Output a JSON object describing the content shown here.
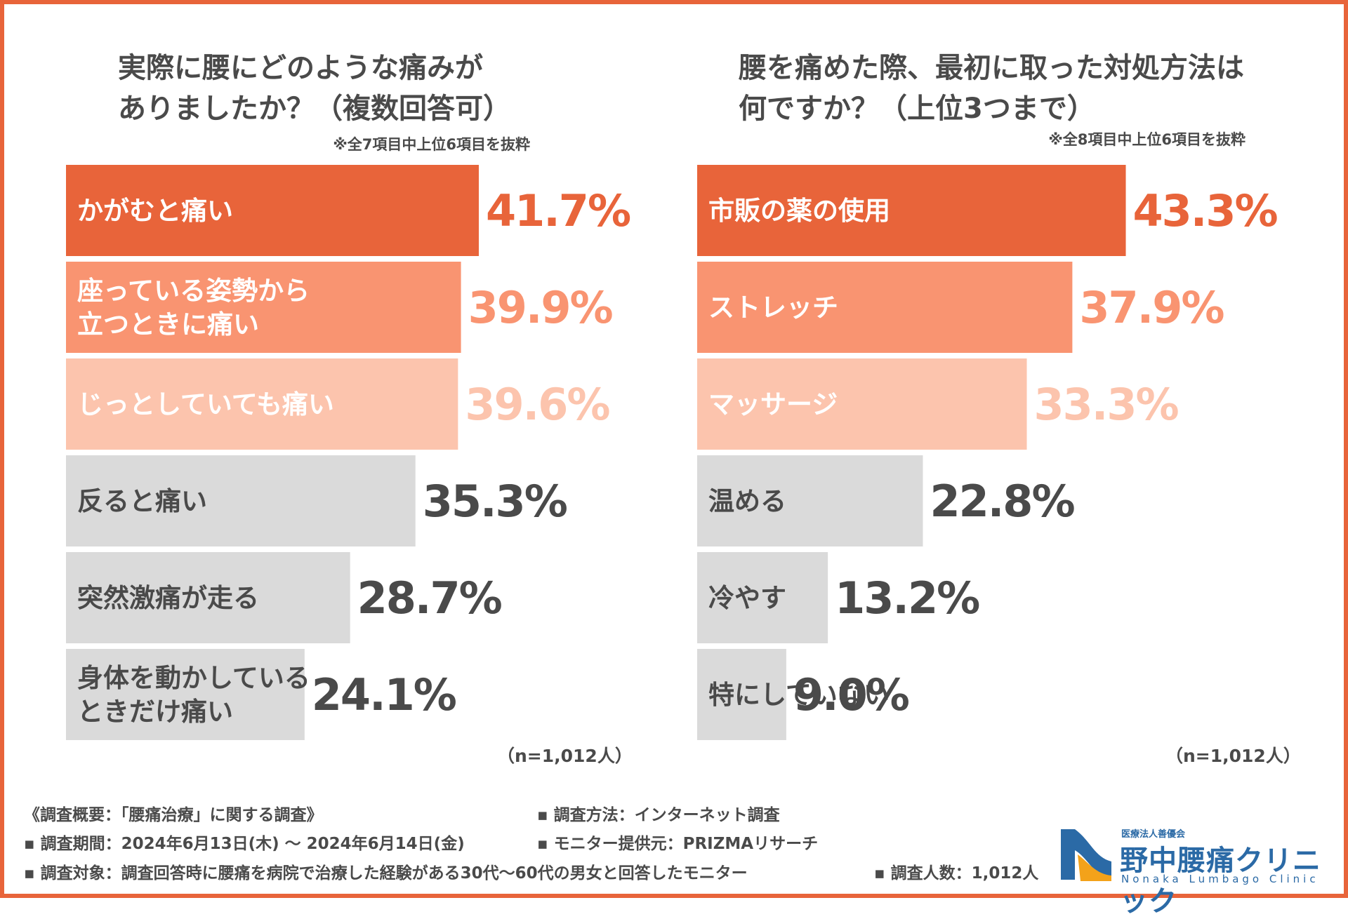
{
  "chart_data": [
    {
      "type": "bar",
      "orientation": "horizontal",
      "title": "実際に腰にどのような痛みがありましたか？（複数回答可）",
      "title_lines": [
        "実際に腰にどのような痛みが",
        "ありましたか？（複数回答可）"
      ],
      "note": "※全7項目中上位6項目を抜粋",
      "categories": [
        "かがむと痛い",
        "座っている姿勢から立つときに痛い",
        "じっとしていても痛い",
        "反ると痛い",
        "突然激痛が走る",
        "身体を動かしているときだけ痛い"
      ],
      "category_lines": [
        [
          "かがむと痛い"
        ],
        [
          "座っている姿勢から",
          "立つときに痛い"
        ],
        [
          "じっとしていても痛い"
        ],
        [
          "反ると痛い"
        ],
        [
          "突然激痛が走る"
        ],
        [
          "身体を動かしている",
          "ときだけ痛い"
        ]
      ],
      "values": [
        41.7,
        39.9,
        39.6,
        35.3,
        28.7,
        24.1
      ],
      "value_labels": [
        "41.7%",
        "39.9%",
        "39.6%",
        "35.3%",
        "28.7%",
        "24.1%"
      ],
      "sample": "（n=1,012人）"
    },
    {
      "type": "bar",
      "orientation": "horizontal",
      "title": "腰を痛めた際、最初に取った対処方法は何ですか？（上位3つまで）",
      "title_lines": [
        "腰を痛めた際、最初に取った対処方法は",
        "何ですか？（上位3つまで）"
      ],
      "note": "※全8項目中上位6項目を抜粋",
      "categories": [
        "市販の薬の使用",
        "ストレッチ",
        "マッサージ",
        "温める",
        "冷やす",
        "特にしていない"
      ],
      "category_lines": [
        [
          "市販の薬の使用"
        ],
        [
          "ストレッチ"
        ],
        [
          "マッサージ"
        ],
        [
          "温める"
        ],
        [
          "冷やす"
        ],
        [
          "特にしていない"
        ]
      ],
      "values": [
        43.3,
        37.9,
        33.3,
        22.8,
        13.2,
        9.0
      ],
      "value_labels": [
        "43.3%",
        "37.9%",
        "33.3%",
        "22.8%",
        "13.2%",
        "9.0%"
      ],
      "sample": "（n=1,012人）"
    }
  ],
  "colors": {
    "frame": "#e8643a",
    "rank1": "#e8643a",
    "rank2": "#f99471",
    "rank3": "#fcc4ad",
    "rest": "#dadada",
    "rest_value": "#4a4a4a",
    "rest_text": "#4a4a4a",
    "top_text": "#ffffff"
  },
  "footer": {
    "overview": "《調査概要：「腰痛治療」に関する調査》",
    "period": "▪ 調査期間：2024年6月13日(木) ～ 2024年6月14日(金)",
    "target": "▪ 調査対象：調査回答時に腰痛を病院で治療した経験がある30代～60代の男女と回答したモニター",
    "method": "▪ 調査方法：インターネット調査",
    "provider": "▪ モニター提供元：PRIZMAリサーチ",
    "count": "▪ 調査人数：1,012人"
  },
  "logo": {
    "org": "医療法人善優会",
    "name": "野中腰痛クリニック",
    "english": "Nonaka Lumbago Clinic"
  }
}
